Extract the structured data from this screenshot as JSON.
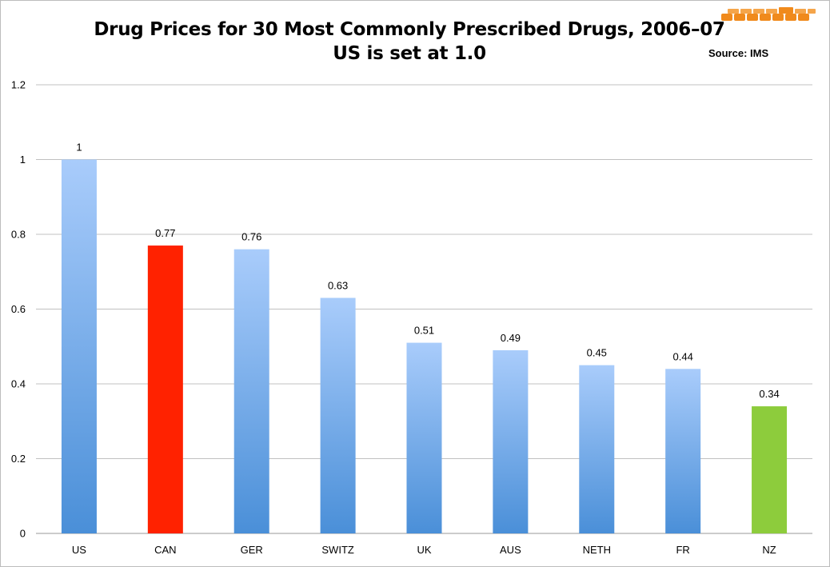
{
  "chart_data": {
    "type": "bar",
    "title_line1": "Drug Prices for 30 Most Commonly Prescribed Drugs, 2006–07",
    "title_line2": "US is set at 1.0",
    "source": "Source: IMS",
    "categories": [
      "US",
      "CAN",
      "GER",
      "SWITZ",
      "UK",
      "AUS",
      "NETH",
      "FR",
      "NZ"
    ],
    "values": [
      1,
      0.77,
      0.76,
      0.63,
      0.51,
      0.49,
      0.45,
      0.44,
      0.34
    ],
    "data_labels": [
      "1",
      "0.77",
      "0.76",
      "0.63",
      "0.51",
      "0.49",
      "0.45",
      "0.44",
      "0.34"
    ],
    "bar_colors": [
      "gradient-blue",
      "#ff2200",
      "gradient-blue",
      "gradient-blue",
      "gradient-blue",
      "gradient-blue",
      "gradient-blue",
      "gradient-blue",
      "#8dcc3c"
    ],
    "ylim": [
      0,
      1.2
    ],
    "yticks": [
      0,
      0.2,
      0.4,
      0.6,
      0.8,
      1,
      1.2
    ],
    "ytick_labels": [
      "0",
      "0.2",
      "0.4",
      "0.6",
      "0.8",
      "1",
      "1.2"
    ],
    "xlabel": "",
    "ylabel": "",
    "grid": true,
    "colors": {
      "gradient_top": "#a9ccfb",
      "gradient_bottom": "#4a8fd8",
      "highlight_red": "#ff2200",
      "highlight_green": "#8dcc3c",
      "grid": "#c0c0c0"
    }
  },
  "logo": {
    "icon": "orange-bricks-logo-icon",
    "color": "#f08a1c"
  }
}
